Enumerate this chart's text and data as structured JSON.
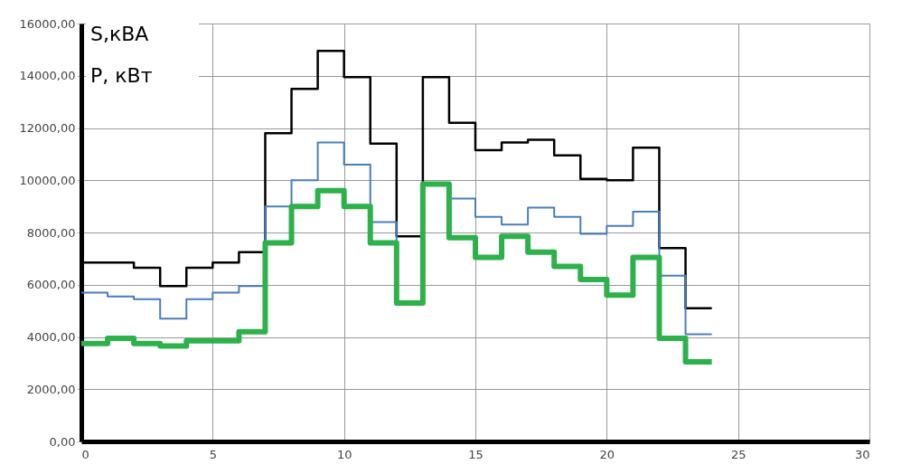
{
  "chart_data": {
    "type": "step",
    "ylabel": "S,кВА\nP, кВт",
    "x": [
      0,
      1,
      2,
      3,
      4,
      5,
      6,
      7,
      8,
      9,
      10,
      11,
      12,
      13,
      14,
      15,
      16,
      17,
      18,
      19,
      20,
      21,
      22,
      23,
      24
    ],
    "series": [
      {
        "color": "#000000",
        "values": [
          6850,
          6850,
          6650,
          5950,
          6650,
          6850,
          7250,
          11800,
          13500,
          14950,
          13950,
          11400,
          7850,
          13950,
          12200,
          11150,
          11450,
          11550,
          10950,
          10050,
          10000,
          11250,
          7400,
          5100,
          5100
        ]
      },
      {
        "color": "#4a7ebb",
        "values": [
          5700,
          5550,
          5450,
          4700,
          5450,
          5700,
          5950,
          9000,
          10000,
          11450,
          10600,
          8400,
          5800,
          null,
          9300,
          8600,
          8300,
          8950,
          8600,
          7950,
          8250,
          8800,
          6350,
          4100,
          4100
        ]
      },
      {
        "color": "#2db14a",
        "values": [
          3750,
          3950,
          3750,
          3650,
          3850,
          3850,
          4200,
          7600,
          9000,
          9600,
          9000,
          7600,
          5300,
          9850,
          7800,
          7050,
          7850,
          7250,
          6700,
          6200,
          5600,
          7050,
          3950,
          3050,
          3050
        ]
      }
    ],
    "xlim": [
      0,
      30
    ],
    "xticks": [
      0,
      5,
      10,
      15,
      20,
      25,
      30
    ],
    "ylim": [
      0,
      16000
    ],
    "yticks": [
      {
        "value": 0,
        "label": "0,00"
      },
      {
        "value": 2000,
        "label": "2000,00"
      },
      {
        "value": 4000,
        "label": "4000,00"
      },
      {
        "value": 6000,
        "label": "6000,00"
      },
      {
        "value": 8000,
        "label": "8000,00"
      },
      {
        "value": 10000,
        "label": "10000,00"
      },
      {
        "value": 12000,
        "label": "12000,00"
      },
      {
        "value": 14000,
        "label": "14000,00"
      },
      {
        "value": 16000,
        "label": "16000,00"
      }
    ],
    "grid": true
  }
}
